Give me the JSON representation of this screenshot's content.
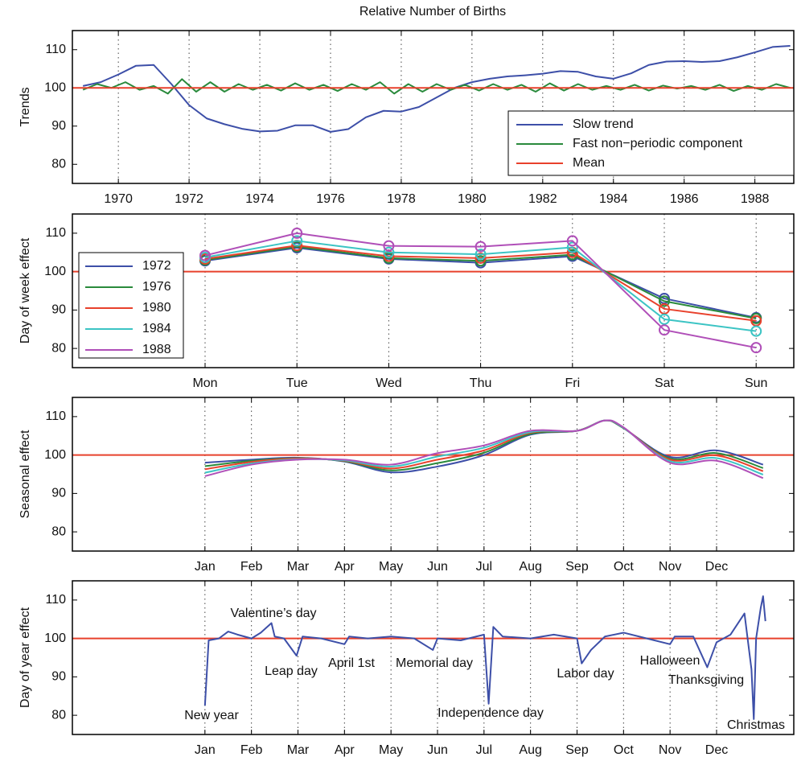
{
  "chart_data": [
    {
      "type": "line",
      "title": "Relative Number of Births",
      "ylabel": "Trends",
      "xlim": [
        1968.7,
        1989.1
      ],
      "xticks": [
        1970,
        1972,
        1974,
        1976,
        1978,
        1980,
        1982,
        1984,
        1986,
        1988
      ],
      "ylim": [
        75,
        115
      ],
      "yticks": [
        80,
        90,
        100,
        110
      ],
      "grid": "x",
      "legend": "lower right",
      "series": [
        {
          "name": "Slow trend",
          "color": "#3d4fa8",
          "x": [
            1969,
            1969.5,
            1970,
            1970.5,
            1971,
            1971.5,
            1972,
            1972.5,
            1973,
            1973.5,
            1974,
            1974.5,
            1975,
            1975.5,
            1976,
            1976.5,
            1977,
            1977.5,
            1978,
            1978.5,
            1979,
            1979.5,
            1980,
            1980.5,
            1981,
            1981.5,
            1982,
            1982.5,
            1983,
            1983.5,
            1984,
            1984.5,
            1985,
            1985.5,
            1986,
            1986.5,
            1987,
            1987.5,
            1988,
            1988.5,
            1989
          ],
          "values": [
            100.5,
            101.5,
            103.5,
            105.8,
            106,
            101,
            95.5,
            92,
            90.5,
            89.3,
            88.6,
            88.8,
            90.2,
            90.2,
            88.5,
            89.2,
            92.3,
            94,
            93.8,
            95,
            97.5,
            100,
            101.5,
            102.4,
            103,
            103.3,
            103.7,
            104.4,
            104.2,
            103,
            102.4,
            103.8,
            106,
            106.9,
            107,
            106.8,
            107,
            108,
            109.3,
            110.7,
            111
          ]
        },
        {
          "name": "Fast non−periodic component",
          "color": "#2a8a3c",
          "x": [
            1969.0,
            1969.4,
            1969.8,
            1970.2,
            1970.6,
            1971.0,
            1971.4,
            1971.8,
            1972.2,
            1972.6,
            1973.0,
            1973.4,
            1973.8,
            1974.2,
            1974.6,
            1975.0,
            1975.4,
            1975.8,
            1976.2,
            1976.6,
            1977.0,
            1977.4,
            1977.8,
            1978.2,
            1978.6,
            1979.0,
            1979.4,
            1979.8,
            1980.2,
            1980.6,
            1981.0,
            1981.4,
            1981.8,
            1982.2,
            1982.6,
            1983.0,
            1983.4,
            1983.8,
            1984.2,
            1984.6,
            1985.0,
            1985.4,
            1985.8,
            1986.2,
            1986.6,
            1987.0,
            1987.4,
            1987.8,
            1988.2,
            1988.6,
            1989.0
          ],
          "values": [
            99.5,
            101,
            100,
            101.5,
            99.5,
            100.5,
            98.5,
            102.3,
            99,
            101.5,
            99,
            101,
            99.5,
            100.8,
            99.3,
            101.2,
            99.5,
            100.8,
            99.2,
            101,
            99.5,
            101.5,
            98.5,
            101,
            99,
            101,
            99.5,
            100.8,
            99.3,
            101,
            99.5,
            100.8,
            99,
            101.2,
            99.3,
            101,
            99.5,
            100.5,
            99.5,
            100.8,
            99.3,
            100.6,
            99.8,
            100.5,
            99.5,
            100.8,
            99.2,
            100.5,
            99.5,
            101,
            100
          ]
        },
        {
          "name": "Mean",
          "color": "#e8412c",
          "hline": true,
          "values": [
            100
          ]
        }
      ]
    },
    {
      "type": "line",
      "ylabel": "Day of week effect",
      "markers": true,
      "categories": [
        "Mon",
        "Tue",
        "Wed",
        "Thu",
        "Fri",
        "Sat",
        "Sun"
      ],
      "ylim": [
        75,
        115
      ],
      "yticks": [
        80,
        90,
        100,
        110
      ],
      "grid": "x",
      "legend": "left",
      "hline": {
        "value": 100,
        "color": "#e8412c"
      },
      "series": [
        {
          "name": "1972",
          "color": "#3d4fa8",
          "values": [
            102.8,
            106.2,
            103.3,
            102.3,
            104.0,
            93.0,
            88.0
          ]
        },
        {
          "name": "1976",
          "color": "#2a8a3c",
          "values": [
            103.0,
            106.5,
            103.5,
            102.8,
            104.4,
            92.3,
            87.8
          ]
        },
        {
          "name": "1980",
          "color": "#e8412c",
          "values": [
            103.3,
            106.8,
            104.0,
            103.5,
            105.0,
            90.3,
            87.2
          ]
        },
        {
          "name": "1984",
          "color": "#3cc4c4",
          "values": [
            103.7,
            108.0,
            105.0,
            104.5,
            106.3,
            87.6,
            84.5
          ]
        },
        {
          "name": "1988",
          "color": "#b04fb8",
          "values": [
            104.2,
            110.0,
            106.7,
            106.5,
            108.0,
            84.8,
            80.2
          ]
        }
      ]
    },
    {
      "type": "line",
      "ylabel": "Seasonal effect",
      "smooth": true,
      "xlim": [
        -2.85,
        12.66
      ],
      "xticks": [
        {
          "value": 0,
          "label": "Jan"
        },
        {
          "value": 1,
          "label": "Feb"
        },
        {
          "value": 2,
          "label": "Mar"
        },
        {
          "value": 3,
          "label": "Apr"
        },
        {
          "value": 4,
          "label": "May"
        },
        {
          "value": 5,
          "label": "Jun"
        },
        {
          "value": 6,
          "label": "Jul"
        },
        {
          "value": 7,
          "label": "Aug"
        },
        {
          "value": 8,
          "label": "Sep"
        },
        {
          "value": 9,
          "label": "Oct"
        },
        {
          "value": 10,
          "label": "Nov"
        },
        {
          "value": 11,
          "label": "Dec"
        }
      ],
      "ylim": [
        75,
        115
      ],
      "yticks": [
        80,
        90,
        100,
        110
      ],
      "grid": "x",
      "legend": "left",
      "hline": {
        "value": 100,
        "color": "#e8412c"
      },
      "x": [
        0,
        1,
        2,
        3,
        4,
        5,
        6,
        7,
        8,
        8.6,
        9,
        10,
        11,
        12
      ],
      "series": [
        {
          "name": "1972",
          "color": "#3d4fa8",
          "values": [
            98.0,
            98.8,
            99.3,
            98.3,
            95.5,
            97.0,
            100.0,
            105.3,
            106.3,
            109.0,
            107.0,
            99.5,
            101.2,
            97.5
          ]
        },
        {
          "name": "1976",
          "color": "#2a8a3c",
          "values": [
            97.1,
            98.5,
            99.2,
            98.4,
            96.0,
            97.9,
            100.6,
            105.5,
            106.3,
            109.0,
            107.0,
            99.1,
            100.5,
            96.6
          ]
        },
        {
          "name": "1980",
          "color": "#e8412c",
          "values": [
            96.3,
            98.2,
            99.1,
            98.5,
            96.5,
            98.8,
            101.2,
            105.8,
            106.3,
            109.0,
            107.1,
            98.8,
            99.9,
            95.8
          ]
        },
        {
          "name": "1984",
          "color": "#3cc4c4",
          "values": [
            95.4,
            97.8,
            98.9,
            98.6,
            97.0,
            99.6,
            101.9,
            106.0,
            106.3,
            109.0,
            107.1,
            98.4,
            99.2,
            94.9
          ]
        },
        {
          "name": "1988",
          "color": "#b04fb8",
          "values": [
            94.5,
            97.5,
            98.8,
            98.8,
            97.5,
            100.5,
            102.5,
            106.3,
            106.3,
            109.0,
            107.2,
            98.0,
            98.5,
            94.0
          ]
        }
      ]
    },
    {
      "type": "line",
      "ylabel": "Day of year effect",
      "xlim": [
        -2.85,
        12.66
      ],
      "xticks": [
        {
          "value": 0,
          "label": "Jan"
        },
        {
          "value": 1,
          "label": "Feb"
        },
        {
          "value": 2,
          "label": "Mar"
        },
        {
          "value": 3,
          "label": "Apr"
        },
        {
          "value": 4,
          "label": "May"
        },
        {
          "value": 5,
          "label": "Jun"
        },
        {
          "value": 6,
          "label": "Jul"
        },
        {
          "value": 7,
          "label": "Aug"
        },
        {
          "value": 8,
          "label": "Sep"
        },
        {
          "value": 9,
          "label": "Oct"
        },
        {
          "value": 10,
          "label": "Nov"
        },
        {
          "value": 11,
          "label": "Dec"
        }
      ],
      "ylim": [
        75,
        115
      ],
      "yticks": [
        80,
        90,
        100,
        110
      ],
      "grid": "x",
      "hline": {
        "value": 100,
        "color": "#e8412c"
      },
      "color": "#3d4fa8",
      "x": [
        0,
        0.08,
        0.3,
        0.5,
        0.7,
        1.0,
        1.2,
        1.43,
        1.5,
        1.7,
        1.97,
        2.1,
        2.5,
        3.0,
        3.1,
        3.5,
        4.0,
        4.5,
        4.9,
        5.0,
        5.5,
        6.0,
        6.1,
        6.2,
        6.4,
        7.0,
        7.5,
        8.0,
        8.1,
        8.3,
        8.6,
        9.0,
        9.5,
        10.0,
        10.1,
        10.5,
        10.8,
        11.0,
        11.3,
        11.6,
        11.75,
        11.8,
        11.85,
        11.95,
        12.0,
        12.05
      ],
      "values": [
        82.5,
        99.5,
        100,
        101.8,
        101,
        100,
        101.5,
        104,
        100.5,
        100,
        95.5,
        100.5,
        100,
        98.5,
        100.5,
        100,
        100.5,
        100,
        97,
        100,
        99.5,
        101,
        83,
        103,
        100.5,
        100,
        101,
        100,
        93.5,
        97,
        100.5,
        101.5,
        100,
        98.5,
        100.5,
        100.5,
        92.5,
        99,
        101,
        106.5,
        92,
        79,
        100,
        108,
        111,
        104.5
      ],
      "annotations": [
        "New year",
        "Valentine’s day",
        "Leap day",
        "April 1st",
        "Memorial day",
        "Independence day",
        "Labor day",
        "Halloween",
        "Thanksgiving",
        "Christmas"
      ]
    }
  ]
}
